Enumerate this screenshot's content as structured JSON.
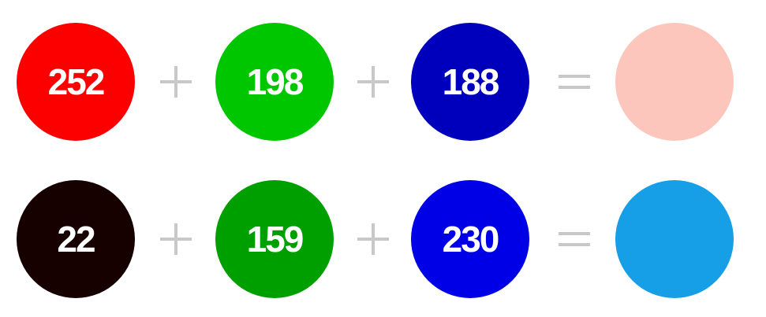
{
  "rows": [
    {
      "red": {
        "value": "252",
        "color": "#fc0000"
      },
      "green": {
        "value": "198",
        "color": "#00c600"
      },
      "blue": {
        "value": "188",
        "color": "#0000bc"
      },
      "result": {
        "color": "#fcc6bc"
      }
    },
    {
      "red": {
        "value": "22",
        "color": "#160000"
      },
      "green": {
        "value": "159",
        "color": "#009f00"
      },
      "blue": {
        "value": "230",
        "color": "#0000e6"
      },
      "result": {
        "color": "#169fe6"
      }
    }
  ],
  "operator_color": "#c8c8c8"
}
